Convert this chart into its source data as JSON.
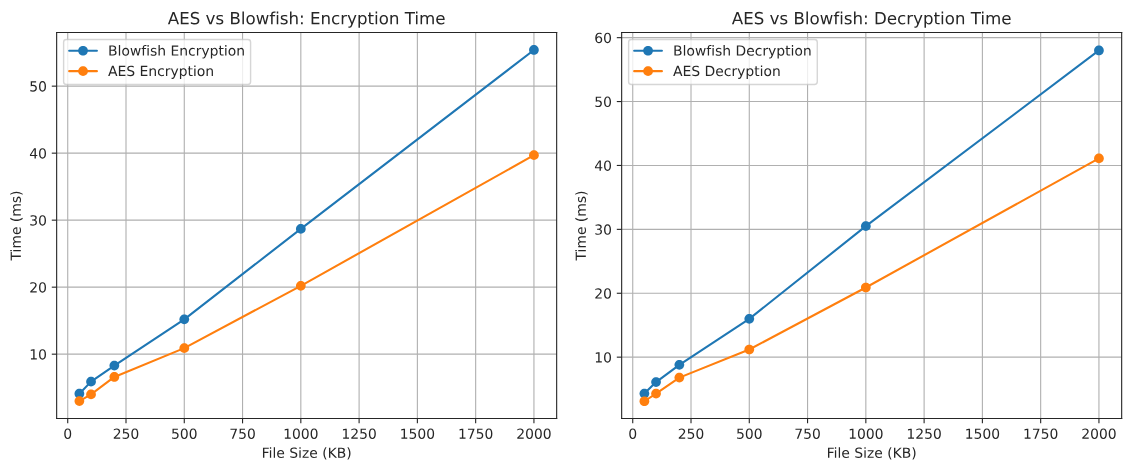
{
  "chart_data": [
    {
      "type": "line",
      "title": "AES vs Blowfish: Encryption Time",
      "xlabel": "File Size (KB)",
      "ylabel": "Time (ms)",
      "x": [
        50,
        100,
        200,
        500,
        1000,
        2000
      ],
      "series": [
        {
          "name": "Blowfish Encryption",
          "color": "#1f77b4",
          "values": [
            4.1,
            5.9,
            8.3,
            15.2,
            28.7,
            55.4
          ]
        },
        {
          "name": "AES Encryption",
          "color": "#ff7f0e",
          "values": [
            3.0,
            4.0,
            6.6,
            10.9,
            20.2,
            39.7
          ]
        }
      ],
      "xlim": [
        -47.5,
        2097.5
      ],
      "xticks": [
        0,
        250,
        500,
        750,
        1000,
        1250,
        1500,
        1750,
        2000
      ],
      "ylim": [
        0.4,
        58.0
      ],
      "yticks": [
        10,
        20,
        30,
        40,
        50
      ],
      "grid": true,
      "legend": "top left",
      "marker": "circle",
      "line_style": "solid"
    },
    {
      "type": "line",
      "title": "AES vs Blowfish: Decryption Time",
      "xlabel": "File Size (KB)",
      "ylabel": "Time (ms)",
      "x": [
        50,
        100,
        200,
        500,
        1000,
        2000
      ],
      "series": [
        {
          "name": "Blowfish Decryption",
          "color": "#1f77b4",
          "values": [
            4.3,
            6.1,
            8.8,
            16.0,
            30.5,
            58.0
          ]
        },
        {
          "name": "AES Decryption",
          "color": "#ff7f0e",
          "values": [
            3.1,
            4.3,
            6.8,
            11.2,
            20.9,
            41.1
          ]
        }
      ],
      "xlim": [
        -47.5,
        2097.5
      ],
      "xticks": [
        0,
        250,
        500,
        750,
        1000,
        1250,
        1500,
        1750,
        2000
      ],
      "ylim": [
        0.4,
        60.8
      ],
      "yticks": [
        10,
        20,
        30,
        40,
        50,
        60
      ],
      "grid": true,
      "legend": "top left",
      "marker": "circle",
      "line_style": "solid"
    }
  ]
}
